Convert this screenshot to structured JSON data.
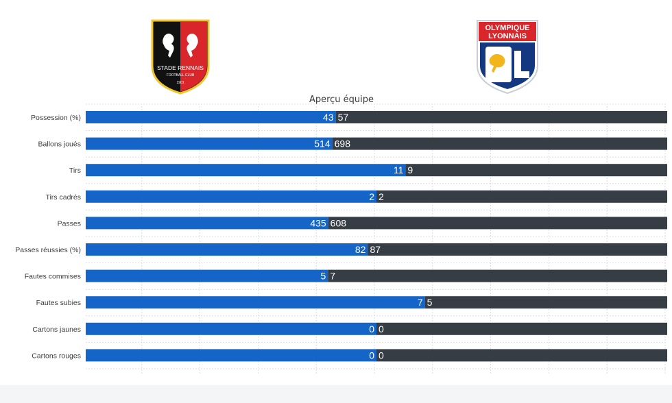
{
  "chart_data": {
    "type": "bar",
    "title": "Aperçu équipe",
    "categories": [
      "Possession (%)",
      "Ballons joués",
      "Tirs",
      "Tirs cadrés",
      "Passes",
      "Passes réussies (%)",
      "Fautes commises",
      "Fautes subies",
      "Cartons jaunes",
      "Cartons rouges"
    ],
    "series": [
      {
        "name": "",
        "values": [
          43,
          514,
          11,
          2,
          435,
          82,
          5,
          7,
          0,
          0
        ]
      },
      {
        "name": "",
        "values": [
          57,
          698,
          9,
          2,
          608,
          87,
          7,
          5,
          0,
          0
        ]
      }
    ],
    "grid": true,
    "stacked_share": true
  },
  "colors": {
    "home": "#1565c8",
    "away": "#363d44",
    "grid": "#d9dde2",
    "label": "#3d3d3d"
  },
  "home_crest": {
    "name": "STADE RENNAIS",
    "sub": "FOOTBALL CLUB",
    "year": "1901"
  },
  "away_crest": {
    "line1": "OLYMPIQUE",
    "line2": "LYONNAIS"
  }
}
